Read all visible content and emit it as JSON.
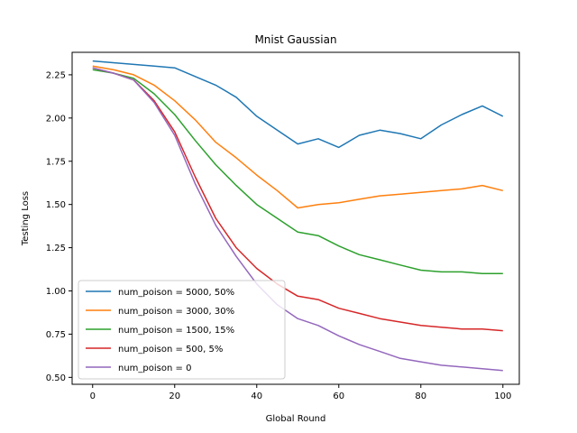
{
  "chart_data": {
    "type": "line",
    "title": "Mnist Gaussian",
    "xlabel": "Global Round",
    "ylabel": "Testing Loss",
    "xlim": [
      -5,
      104
    ],
    "ylim": [
      0.46,
      2.38
    ],
    "xticks": [
      0,
      20,
      40,
      60,
      80,
      100
    ],
    "yticks": [
      0.5,
      0.75,
      1.0,
      1.25,
      1.5,
      1.75,
      2.0,
      2.25
    ],
    "ytick_labels": [
      "0.50",
      "0.75",
      "1.00",
      "1.25",
      "1.50",
      "1.75",
      "2.00",
      "2.25"
    ],
    "grid": false,
    "legend": "lower-left",
    "x": [
      0,
      5,
      10,
      15,
      20,
      25,
      30,
      35,
      40,
      45,
      50,
      55,
      60,
      65,
      70,
      75,
      80,
      85,
      90,
      95,
      100
    ],
    "series": [
      {
        "name": "num_poison = 5000, 50%",
        "color": "#1f77b4",
        "values": [
          2.33,
          2.32,
          2.31,
          2.3,
          2.29,
          2.24,
          2.19,
          2.12,
          2.01,
          1.93,
          1.85,
          1.88,
          1.83,
          1.9,
          1.93,
          1.91,
          1.88,
          1.96,
          2.02,
          2.07,
          2.01
        ]
      },
      {
        "name": "num_poison = 3000, 30%",
        "color": "#ff7f0e",
        "values": [
          2.3,
          2.28,
          2.25,
          2.19,
          2.1,
          1.99,
          1.86,
          1.77,
          1.67,
          1.58,
          1.48,
          1.5,
          1.51,
          1.53,
          1.55,
          1.56,
          1.57,
          1.58,
          1.59,
          1.61,
          1.58
        ]
      },
      {
        "name": "num_poison = 1500, 15%",
        "color": "#2ca02c",
        "values": [
          2.28,
          2.26,
          2.23,
          2.14,
          2.02,
          1.87,
          1.73,
          1.61,
          1.5,
          1.42,
          1.34,
          1.32,
          1.26,
          1.21,
          1.18,
          1.15,
          1.12,
          1.11,
          1.11,
          1.1,
          1.1
        ]
      },
      {
        "name": "num_poison = 500, 5%",
        "color": "#d62728",
        "values": [
          2.29,
          2.26,
          2.22,
          2.1,
          1.92,
          1.66,
          1.42,
          1.25,
          1.13,
          1.04,
          0.97,
          0.95,
          0.9,
          0.87,
          0.84,
          0.82,
          0.8,
          0.79,
          0.78,
          0.78,
          0.77
        ]
      },
      {
        "name": "num_poison = 0",
        "color": "#9467bd",
        "values": [
          2.29,
          2.26,
          2.22,
          2.09,
          1.9,
          1.62,
          1.38,
          1.2,
          1.04,
          0.92,
          0.84,
          0.8,
          0.74,
          0.69,
          0.65,
          0.61,
          0.59,
          0.57,
          0.56,
          0.55,
          0.54
        ]
      }
    ]
  }
}
